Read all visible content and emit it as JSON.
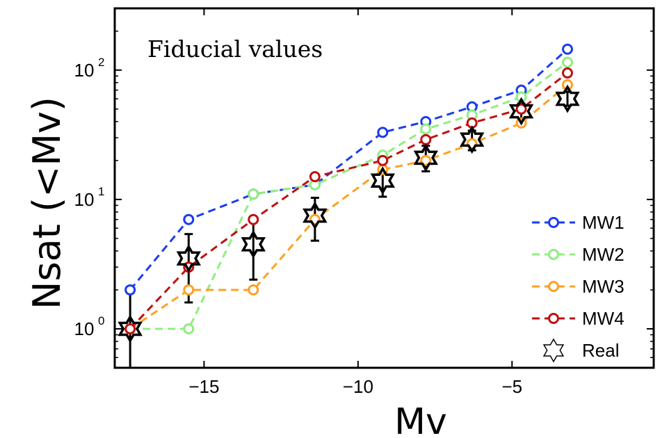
{
  "chart_data": {
    "type": "scatter",
    "annotation": "Fiducial values",
    "xlabel": "Mv",
    "ylabel": "Nsat (<Mv)",
    "xlim": [
      -17.9,
      -0.4
    ],
    "ylim": [
      0.5,
      300
    ],
    "yscale": "log",
    "grid": false,
    "legend_position": "bottom-right",
    "x_ticks": [
      {
        "value": -15,
        "label": "−15"
      },
      {
        "value": -10,
        "label": "−10"
      },
      {
        "value": -5,
        "label": "−5"
      }
    ],
    "y_ticks": [
      {
        "value": 1,
        "base": "10",
        "exp": "0"
      },
      {
        "value": 10,
        "base": "10",
        "exp": "1"
      },
      {
        "value": 100,
        "base": "10",
        "exp": "2"
      }
    ],
    "series": [
      {
        "name": "MW1",
        "color": "#1a3cf0",
        "marker": "circle",
        "line": "dashed",
        "x": [
          -17.4,
          -15.5,
          -13.4,
          -11.4,
          -9.2,
          -7.8,
          -6.3,
          -4.7,
          -3.2
        ],
        "y": [
          2,
          7,
          11,
          13,
          33,
          40,
          52,
          70,
          145
        ]
      },
      {
        "name": "MW2",
        "color": "#90ee80",
        "marker": "circle",
        "line": "dashed",
        "x": [
          -17.4,
          -15.5,
          -13.4,
          -11.4,
          -9.2,
          -7.8,
          -6.3,
          -4.7,
          -3.2
        ],
        "y": [
          1,
          1,
          11,
          13,
          22,
          35,
          45,
          62,
          115
        ]
      },
      {
        "name": "MW3",
        "color": "#ffa020",
        "marker": "circle",
        "line": "dashed",
        "x": [
          -17.4,
          -15.5,
          -13.4,
          -11.4,
          -9.2,
          -7.8,
          -6.3,
          -4.7,
          -3.2
        ],
        "y": [
          1,
          2,
          2,
          7,
          17,
          20,
          27,
          39,
          77
        ]
      },
      {
        "name": "MW4",
        "color": "#c01010",
        "marker": "circle",
        "line": "dashed",
        "x": [
          -17.4,
          -15.5,
          -13.4,
          -11.4,
          -9.2,
          -7.8,
          -6.3,
          -4.7,
          -3.2
        ],
        "y": [
          1,
          3,
          7,
          15,
          20,
          29,
          39,
          50,
          95
        ]
      },
      {
        "name": "Real",
        "color": "#000000",
        "marker": "star",
        "line": "none",
        "x": [
          -17.4,
          -15.5,
          -13.4,
          -11.4,
          -9.2,
          -7.8,
          -6.3,
          -4.7,
          -3.2
        ],
        "y": [
          1,
          3.5,
          4.5,
          7.5,
          14,
          21,
          29,
          48,
          60
        ],
        "y_err_low": [
          0.5,
          1.6,
          2.4,
          4.8,
          10.5,
          16.5,
          24,
          42,
          53
        ],
        "y_err_high": [
          1.9,
          5.4,
          7.2,
          10.3,
          18,
          26,
          34,
          55,
          68
        ]
      }
    ]
  }
}
